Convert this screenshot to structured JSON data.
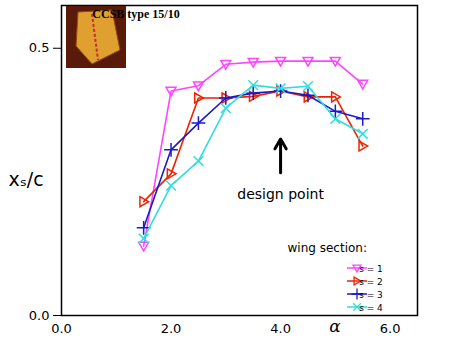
{
  "chart_data": {
    "type": "line",
    "title": "CCSB type 15/10",
    "x_label": "α",
    "y_label": "xₛ/c",
    "xlim": [
      0,
      6.5
    ],
    "ylim": [
      0,
      0.58
    ],
    "xticks": [
      {
        "value": 0,
        "label": "0.0"
      },
      {
        "value": 2,
        "label": "2.0"
      },
      {
        "value": 4,
        "label": "4.0"
      },
      {
        "value": 6,
        "label": "6.0"
      }
    ],
    "yticks": [
      {
        "value": 0,
        "label": "0.0"
      },
      {
        "value": 0.5,
        "label": "0.5"
      }
    ],
    "x": [
      1.5,
      2.0,
      2.5,
      3.0,
      3.5,
      4.0,
      4.5,
      5.0,
      5.5
    ],
    "series": [
      {
        "name": "s = 1",
        "color": "#ff44ff",
        "marker": "triangle-down",
        "values": [
          0.13,
          0.42,
          0.43,
          0.47,
          0.474,
          0.476,
          0.476,
          0.476,
          0.433
        ]
      },
      {
        "name": "s = 2",
        "color": "#ee2200",
        "marker": "triangle-right",
        "values": [
          0.213,
          0.265,
          0.407,
          0.407,
          0.41,
          0.42,
          0.409,
          0.409,
          0.317
        ]
      },
      {
        "name": "s = 3",
        "color": "#1a1acc",
        "marker": "plus",
        "values": [
          0.164,
          0.31,
          0.36,
          0.407,
          0.416,
          0.42,
          0.412,
          0.382,
          0.368
        ]
      },
      {
        "name": "s = 4",
        "color": "#33dddd",
        "marker": "times",
        "values": [
          0.144,
          0.243,
          0.289,
          0.388,
          0.431,
          0.425,
          0.429,
          0.368,
          0.34
        ]
      }
    ],
    "legend": "lower right",
    "legend_title": "wing section:",
    "annotations": [
      {
        "text": "design point",
        "x": 4,
        "y": 0.267,
        "arrow_to_y": 0.33
      }
    ]
  }
}
